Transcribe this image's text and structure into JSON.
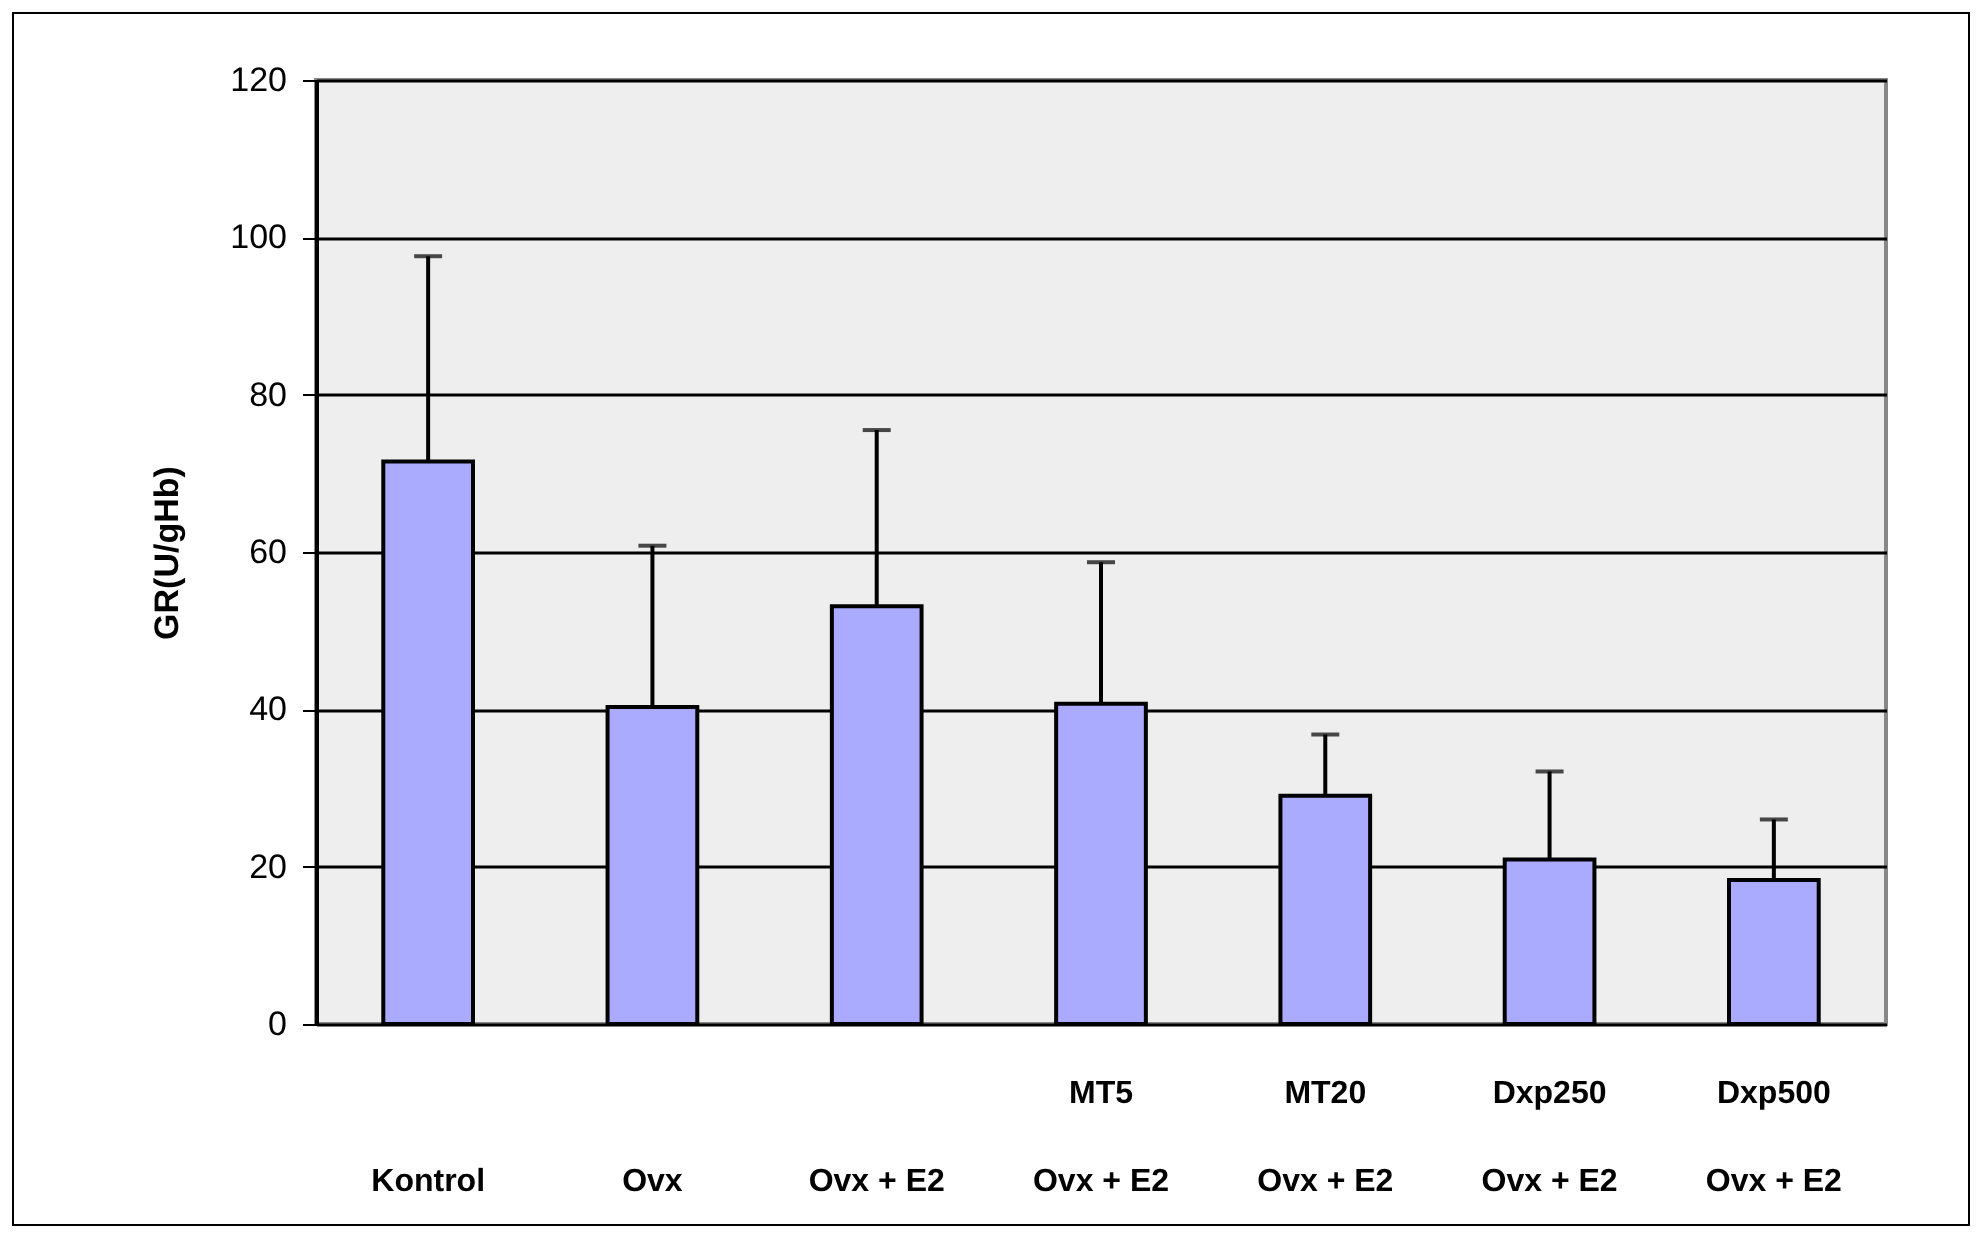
{
  "chart_data": {
    "type": "bar",
    "ylabel": "GR(U/gHb)",
    "categories": [
      "Kontrol",
      "Ovx",
      "Ovx + E2",
      "MT5\nOvx + E2",
      "MT20\nOvx + E2",
      "Dxp250\nOvx + E2",
      "Dxp500\nOvx + E2"
    ],
    "values": [
      71.5,
      40.3,
      53.1,
      40.7,
      29.0,
      20.9,
      18.3
    ],
    "errors": [
      [
        71.5,
        97.6
      ],
      [
        40.3,
        60.8
      ],
      [
        53.1,
        75.5
      ],
      [
        40.7,
        58.7
      ],
      [
        29.0,
        36.8
      ],
      [
        20.9,
        32.1
      ],
      [
        18.3,
        26.0
      ]
    ],
    "color": "#aaaaff",
    "ylim": [
      0,
      120
    ],
    "yticks": [
      0,
      20,
      40,
      60,
      80,
      100,
      120
    ],
    "grid": "y"
  }
}
